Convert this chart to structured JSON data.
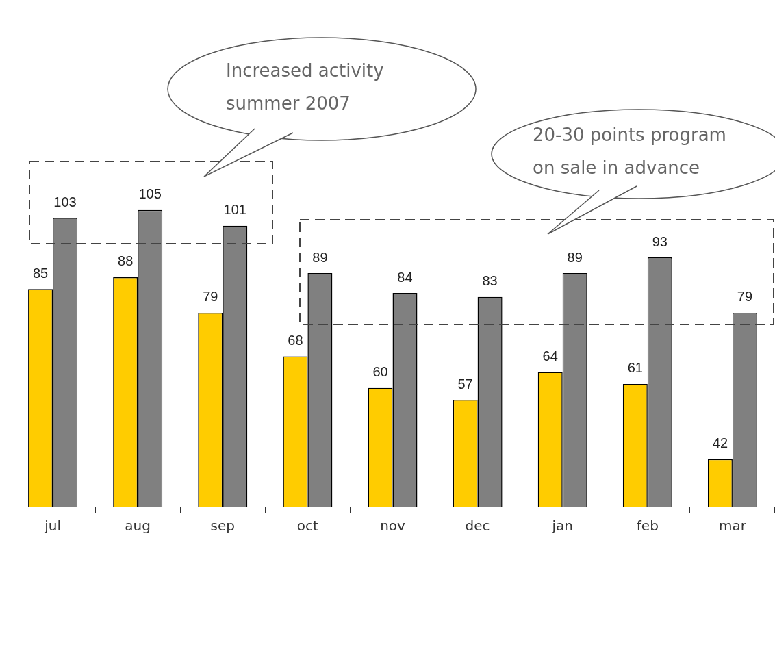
{
  "chart_data": {
    "type": "bar",
    "categories": [
      "jul",
      "aug",
      "sep",
      "oct",
      "nov",
      "dec",
      "jan",
      "feb",
      "mar"
    ],
    "series": [
      {
        "color": "#ffcc00",
        "values": [
          85,
          88,
          79,
          68,
          60,
          57,
          64,
          61,
          42
        ]
      },
      {
        "color": "#808080",
        "values": [
          103,
          105,
          101,
          89,
          84,
          83,
          89,
          93,
          79
        ]
      }
    ],
    "data_labels": true,
    "grid": false,
    "legend": false,
    "annotations": [
      "Increased activity\nsummer 2007",
      "20-30 points program\non sale in advance"
    ]
  }
}
